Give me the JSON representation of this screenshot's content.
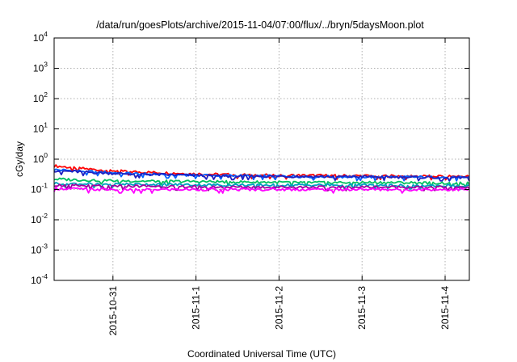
{
  "chart_data": {
    "type": "line",
    "title": "/data/run/goesPlots/archive/2015-11-04/07:00/flux/../bryn/5daysMoon.plot",
    "xlabel": "Coordinated Universal Time (UTC)",
    "ylabel": "cGy/day",
    "yscale": "log",
    "ylim": [
      0.0001,
      10000
    ],
    "xlim": [
      "2015-10-30 07:00",
      "2015-11-04 07:00"
    ],
    "grid": true,
    "ytick_labels": [
      {
        "base": "10",
        "exp": "-4"
      },
      {
        "base": "10",
        "exp": "-3"
      },
      {
        "base": "10",
        "exp": "-2"
      },
      {
        "base": "10",
        "exp": "-1"
      },
      {
        "base": "10",
        "exp": "0"
      },
      {
        "base": "10",
        "exp": "1"
      },
      {
        "base": "10",
        "exp": "2"
      },
      {
        "base": "10",
        "exp": "3"
      },
      {
        "base": "10",
        "exp": "4"
      }
    ],
    "x_ticks": [
      "2015-10-31",
      "2015-11-1",
      "2015-11-2",
      "2015-11-3",
      "2015-11-4"
    ],
    "x_tick_dates": [
      "2015-10-31 00:00",
      "2015-11-01 00:00",
      "2015-11-02 00:00",
      "2015-11-03 00:00",
      "2015-11-04 00:00"
    ],
    "series": [
      {
        "color": "#ff0000",
        "x": [
          "2015-10-30 07:00",
          "2015-10-30 19:00",
          "2015-10-31 07:00",
          "2015-11-01 07:00",
          "2015-11-02 07:00",
          "2015-11-03 07:00",
          "2015-11-04 07:00"
        ],
        "values": [
          0.6,
          0.45,
          0.38,
          0.31,
          0.29,
          0.28,
          0.27
        ]
      },
      {
        "color": "#0060ff",
        "x": [
          "2015-10-30 07:00",
          "2015-10-30 19:00",
          "2015-10-31 07:00",
          "2015-11-01 07:00",
          "2015-11-02 07:00",
          "2015-11-03 07:00",
          "2015-11-04 07:00"
        ],
        "values": [
          0.45,
          0.38,
          0.33,
          0.29,
          0.27,
          0.26,
          0.25
        ]
      },
      {
        "color": "#2020c0",
        "x": [
          "2015-10-30 07:00",
          "2015-10-30 19:00",
          "2015-10-31 07:00",
          "2015-11-01 07:00",
          "2015-11-02 07:00",
          "2015-11-03 07:00",
          "2015-11-04 07:00"
        ],
        "values": [
          0.42,
          0.36,
          0.32,
          0.28,
          0.27,
          0.26,
          0.25
        ]
      },
      {
        "color": "#00c060",
        "x": [
          "2015-10-30 07:00",
          "2015-10-30 19:00",
          "2015-10-31 07:00",
          "2015-11-01 07:00",
          "2015-11-02 07:00",
          "2015-11-03 07:00",
          "2015-11-04 07:00"
        ],
        "values": [
          0.22,
          0.2,
          0.19,
          0.18,
          0.17,
          0.17,
          0.16
        ]
      },
      {
        "color": "#00a0c0",
        "x": [
          "2015-10-30 07:00",
          "2015-10-30 19:00",
          "2015-10-31 07:00",
          "2015-11-01 07:00",
          "2015-11-02 07:00",
          "2015-11-03 07:00",
          "2015-11-04 07:00"
        ],
        "values": [
          0.16,
          0.15,
          0.15,
          0.14,
          0.14,
          0.14,
          0.13
        ]
      },
      {
        "color": "#a000a0",
        "x": [
          "2015-10-30 07:00",
          "2015-10-30 19:00",
          "2015-10-31 07:00",
          "2015-11-01 07:00",
          "2015-11-02 07:00",
          "2015-11-03 07:00",
          "2015-11-04 07:00"
        ],
        "values": [
          0.14,
          0.13,
          0.13,
          0.12,
          0.12,
          0.12,
          0.12
        ]
      },
      {
        "color": "#ff00ff",
        "x": [
          "2015-10-30 07:00",
          "2015-10-30 19:00",
          "2015-10-31 07:00",
          "2015-11-01 07:00",
          "2015-11-02 07:00",
          "2015-11-03 07:00",
          "2015-11-04 07:00"
        ],
        "values": [
          0.11,
          0.1,
          0.1,
          0.1,
          0.1,
          0.1,
          0.1
        ]
      }
    ]
  }
}
